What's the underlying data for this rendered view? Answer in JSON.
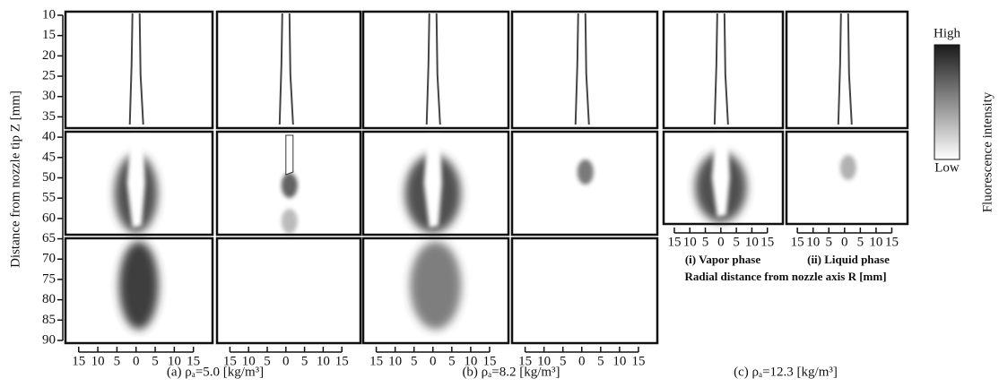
{
  "y_axis": {
    "label": "Distance from nozzle tip Z [mm]",
    "ticks": [
      10,
      15,
      20,
      25,
      30,
      35,
      40,
      45,
      50,
      55,
      60,
      65,
      70,
      75,
      80,
      85,
      90
    ]
  },
  "radial_ticks": [
    15,
    10,
    5,
    0,
    5,
    10,
    15
  ],
  "panels": [
    {
      "caption": "(a) ρₐ=5.0 [kg/m³]"
    },
    {
      "caption": "(b) ρₐ=8.2 [kg/m³]"
    },
    {
      "caption": "(c) ρₐ=12.3 [kg/m³]"
    }
  ],
  "phase_labels": [
    "(i) Vapor phase",
    "(ii) Liquid phase"
  ],
  "radial_axis_label": "Radial distance from nozzle axis R [mm]",
  "colorbar": {
    "high": "High",
    "low": "Low",
    "label": "Fluorescence intensity"
  }
}
